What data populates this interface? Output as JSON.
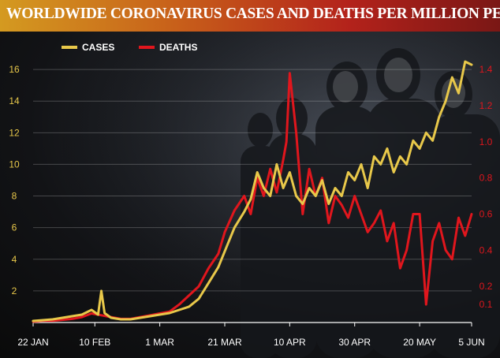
{
  "header": {
    "title": "WORLDWIDE CORONAVIRUS CASES AND DEATHS PER MILLION PEOPLE"
  },
  "colors": {
    "cases": "#e8c84a",
    "deaths": "#e0161d",
    "axis": "#ffffff"
  },
  "chart_data": {
    "type": "line",
    "title": "WORLDWIDE CORONAVIRUS CASES AND DEATHS PER MILLION PEOPLE",
    "x_tick_labels": [
      "22 JAN",
      "10 FEB",
      "1 MAR",
      "21 MAR",
      "10 APR",
      "30 APR",
      "20 MAY",
      "5 JUN"
    ],
    "x_tick_dates": [
      "2020-01-22",
      "2020-02-10",
      "2020-03-01",
      "2020-03-21",
      "2020-04-10",
      "2020-04-30",
      "2020-05-20",
      "2020-06-05"
    ],
    "left_axis": {
      "series": "CASES",
      "ticks": [
        2,
        4,
        6,
        8,
        10,
        12,
        14,
        16
      ],
      "ylim": [
        0,
        17.6
      ]
    },
    "right_axis": {
      "series": "DEATHS",
      "ticks": [
        0.1,
        0.2,
        0.4,
        0.6,
        0.8,
        1.0,
        1.2,
        1.4
      ],
      "ylim": [
        0,
        1.54
      ]
    },
    "legend": {
      "placement": "top-left",
      "entries": [
        "CASES",
        "DEATHS"
      ]
    },
    "grid": true,
    "series": [
      {
        "name": "CASES",
        "axis": "left",
        "x": [
          "2020-01-22",
          "2020-01-25",
          "2020-01-28",
          "2020-01-31",
          "2020-02-03",
          "2020-02-06",
          "2020-02-09",
          "2020-02-11",
          "2020-02-12",
          "2020-02-13",
          "2020-02-15",
          "2020-02-18",
          "2020-02-21",
          "2020-02-24",
          "2020-02-27",
          "2020-03-01",
          "2020-03-04",
          "2020-03-07",
          "2020-03-10",
          "2020-03-13",
          "2020-03-16",
          "2020-03-19",
          "2020-03-21",
          "2020-03-24",
          "2020-03-27",
          "2020-03-29",
          "2020-03-31",
          "2020-04-02",
          "2020-04-04",
          "2020-04-06",
          "2020-04-08",
          "2020-04-10",
          "2020-04-12",
          "2020-04-14",
          "2020-04-16",
          "2020-04-18",
          "2020-04-20",
          "2020-04-22",
          "2020-04-24",
          "2020-04-26",
          "2020-04-28",
          "2020-04-30",
          "2020-05-02",
          "2020-05-04",
          "2020-05-06",
          "2020-05-08",
          "2020-05-10",
          "2020-05-12",
          "2020-05-14",
          "2020-05-16",
          "2020-05-18",
          "2020-05-20",
          "2020-05-22",
          "2020-05-24",
          "2020-05-26",
          "2020-05-28",
          "2020-05-30",
          "2020-06-01",
          "2020-06-03",
          "2020-06-05"
        ],
        "values": [
          0.1,
          0.15,
          0.2,
          0.3,
          0.4,
          0.5,
          0.8,
          0.5,
          2.0,
          0.6,
          0.3,
          0.2,
          0.2,
          0.3,
          0.4,
          0.5,
          0.6,
          0.8,
          1.0,
          1.5,
          2.5,
          3.5,
          4.5,
          6.0,
          7.0,
          7.8,
          9.5,
          8.5,
          8.0,
          10.0,
          8.5,
          9.5,
          8.0,
          7.5,
          8.5,
          8.0,
          9.0,
          7.5,
          8.5,
          8.0,
          9.5,
          9.0,
          10.0,
          8.5,
          10.5,
          10.0,
          11.0,
          9.5,
          10.5,
          10.0,
          11.5,
          11.0,
          12.0,
          11.5,
          13.0,
          14.0,
          15.5,
          14.5,
          16.5,
          16.3
        ]
      },
      {
        "name": "DEATHS",
        "axis": "right",
        "x": [
          "2020-01-22",
          "2020-01-25",
          "2020-01-28",
          "2020-01-31",
          "2020-02-03",
          "2020-02-06",
          "2020-02-09",
          "2020-02-12",
          "2020-02-15",
          "2020-02-18",
          "2020-02-21",
          "2020-02-24",
          "2020-02-27",
          "2020-03-01",
          "2020-03-04",
          "2020-03-07",
          "2020-03-10",
          "2020-03-13",
          "2020-03-16",
          "2020-03-19",
          "2020-03-21",
          "2020-03-24",
          "2020-03-27",
          "2020-03-29",
          "2020-03-31",
          "2020-04-02",
          "2020-04-04",
          "2020-04-06",
          "2020-04-08",
          "2020-04-09",
          "2020-04-10",
          "2020-04-12",
          "2020-04-14",
          "2020-04-16",
          "2020-04-18",
          "2020-04-20",
          "2020-04-22",
          "2020-04-24",
          "2020-04-26",
          "2020-04-28",
          "2020-04-30",
          "2020-05-02",
          "2020-05-04",
          "2020-05-06",
          "2020-05-08",
          "2020-05-10",
          "2020-05-12",
          "2020-05-14",
          "2020-05-16",
          "2020-05-18",
          "2020-05-20",
          "2020-05-22",
          "2020-05-24",
          "2020-05-26",
          "2020-05-28",
          "2020-05-30",
          "2020-06-01",
          "2020-06-03",
          "2020-06-05"
        ],
        "values": [
          0.005,
          0.01,
          0.01,
          0.015,
          0.02,
          0.03,
          0.05,
          0.04,
          0.03,
          0.02,
          0.02,
          0.03,
          0.04,
          0.05,
          0.06,
          0.1,
          0.15,
          0.2,
          0.3,
          0.38,
          0.5,
          0.62,
          0.7,
          0.6,
          0.8,
          0.7,
          0.85,
          0.72,
          0.9,
          1.0,
          1.38,
          1.05,
          0.6,
          0.85,
          0.7,
          0.8,
          0.55,
          0.7,
          0.65,
          0.58,
          0.7,
          0.6,
          0.5,
          0.55,
          0.62,
          0.45,
          0.55,
          0.3,
          0.4,
          0.6,
          0.6,
          0.1,
          0.45,
          0.55,
          0.4,
          0.35,
          0.58,
          0.48,
          0.6
        ]
      }
    ]
  }
}
